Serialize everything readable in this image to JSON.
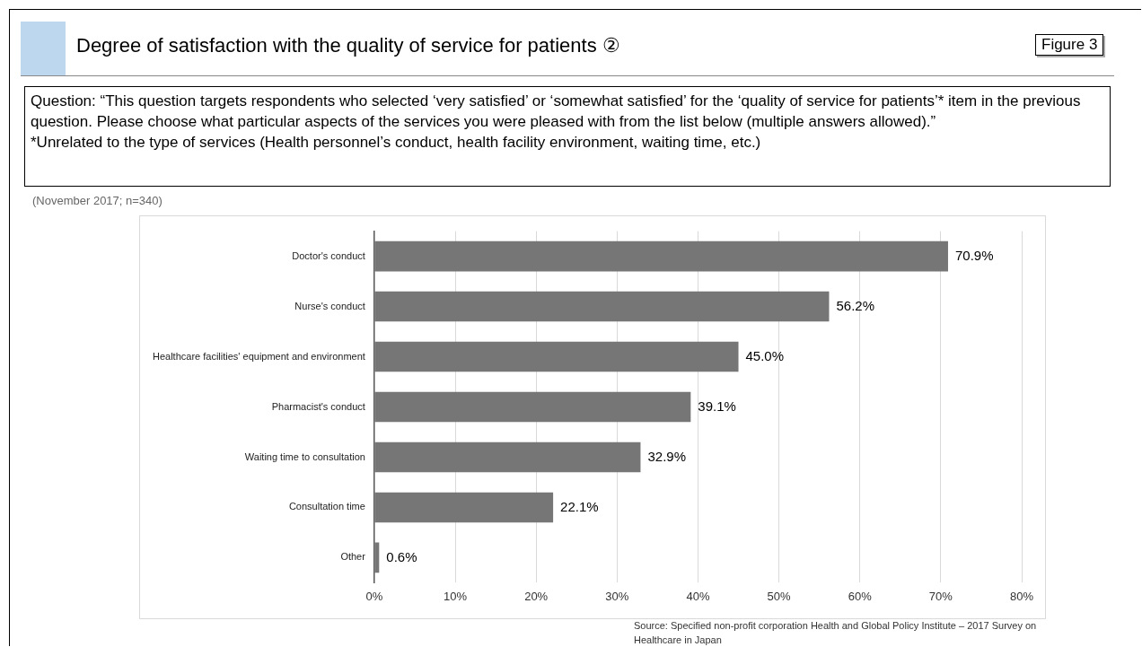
{
  "chart_data": {
    "type": "bar",
    "orientation": "horizontal",
    "title": "Degree of satisfaction with the quality of service for patients ②",
    "subtitle": "(November 2017; n=340)",
    "annotations": [
      "Figure 3",
      "Question: “This question targets respondents who selected ‘very satisfied’ or ‘somewhat satisfied’ for the ‘quality of service for patients’* item in the previous question. Please choose what particular aspects of the services you were pleased with from the list below (multiple answers allowed).”",
      "*Unrelated to the type of services (Health personnel’s conduct, health facility environment, waiting time, etc.)",
      "Source: Specified non-profit corporation Health and Global Policy Institute – 2017 Survey on Healthcare in Japan"
    ],
    "categories": [
      "Doctor's conduct",
      "Nurse's conduct",
      "Healthcare facilities' equipment and environment",
      "Pharmacist's conduct",
      "Waiting time to consultation",
      "Consultation time",
      "Other"
    ],
    "values": [
      70.9,
      56.2,
      45.0,
      39.1,
      32.9,
      22.1,
      0.6
    ],
    "value_labels": [
      "70.9%",
      "56.2%",
      "45.0%",
      "39.1%",
      "32.9%",
      "22.1%",
      "0.6%"
    ],
    "color": "#767676",
    "xlim": [
      0,
      80
    ],
    "xticks": [
      {
        "value": 0,
        "label": "0%"
      },
      {
        "value": 10,
        "label": "10%"
      },
      {
        "value": 20,
        "label": "20%"
      },
      {
        "value": 30,
        "label": "30%"
      },
      {
        "value": 40,
        "label": "40%"
      },
      {
        "value": 50,
        "label": "50%"
      },
      {
        "value": 60,
        "label": "60%"
      },
      {
        "value": 70,
        "label": "70%"
      },
      {
        "value": 80,
        "label": "80%"
      }
    ],
    "grid": "x"
  }
}
